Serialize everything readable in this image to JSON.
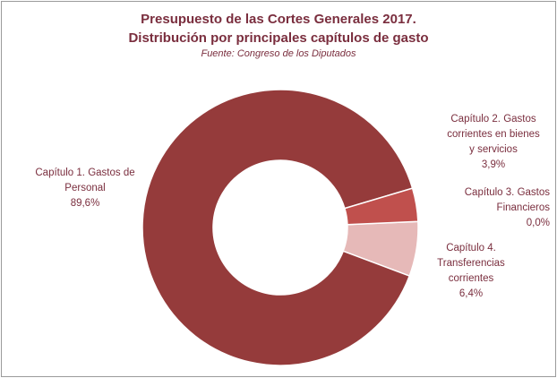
{
  "chart_data": {
    "type": "pie",
    "title": "Presupuesto de las Cortes Generales 2017.",
    "subtitle": "Distribución por principales capítulos de gasto",
    "source": "Fuente:  Congreso de los Diputados",
    "slices": [
      {
        "label_lines": [
          "Capítulo 1. Gastos de",
          "Personal"
        ],
        "value_text": "89,6%",
        "value": 89.6,
        "color": "#953b3b"
      },
      {
        "label_lines": [
          "Capítulo 2. Gastos",
          "corrientes en bienes",
          "y servicios"
        ],
        "value_text": "3,9%",
        "value": 3.9,
        "color": "#c0504d"
      },
      {
        "label_lines": [
          "Capítulo 3. Gastos",
          "Financieros"
        ],
        "value_text": "0,0%",
        "value": 0.0,
        "color": "#d99694"
      },
      {
        "label_lines": [
          "Capítulo 4.",
          "Transferencias",
          "corrientes"
        ],
        "value_text": "6,4%",
        "value": 6.4,
        "color": "#e6b9b8"
      }
    ],
    "legend": "none",
    "start_angle_deg": 0
  }
}
